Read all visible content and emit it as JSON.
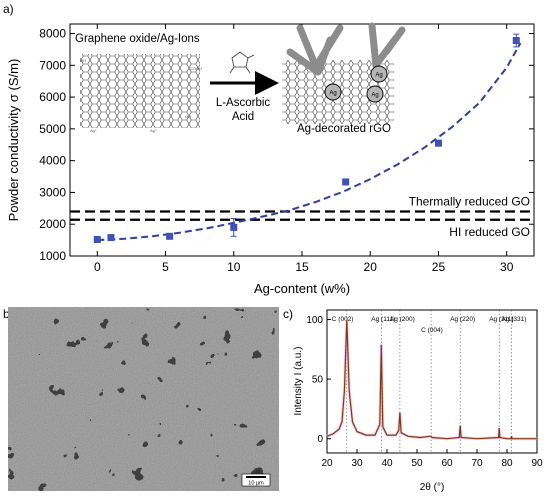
{
  "panels": {
    "a": "a)",
    "b": "b)",
    "c": "c)"
  },
  "chart_data": [
    {
      "type": "scatter",
      "panel": "a",
      "xlabel": "Ag-content (w%)",
      "ylabel": "Powder conductivity σ (S/m)",
      "xlim": [
        -2,
        32
      ],
      "ylim": [
        1000,
        8300
      ],
      "x_ticks": [
        0,
        5,
        10,
        15,
        20,
        25,
        30
      ],
      "y_ticks": [
        1000,
        2000,
        3000,
        4000,
        5000,
        6000,
        7000,
        8000
      ],
      "series": [
        {
          "x": [
            0,
            1,
            5.3,
            10,
            18.2,
            25,
            30.7
          ],
          "y": [
            1520,
            1580,
            1620,
            1900,
            3330,
            4550,
            7780
          ],
          "err": [
            0,
            0,
            0,
            280,
            0,
            0,
            200
          ],
          "color": "#3f51b5"
        }
      ],
      "fit": {
        "x": [
          0,
          2,
          4,
          6,
          8,
          10,
          12,
          14,
          16,
          18,
          20,
          22,
          24,
          26,
          28,
          30,
          31
        ],
        "y": [
          1500,
          1540,
          1620,
          1730,
          1870,
          2040,
          2230,
          2430,
          2700,
          3020,
          3420,
          3880,
          4420,
          5060,
          5820,
          6930,
          7700
        ],
        "color": "#2e3f9e",
        "style": "dashed"
      },
      "reference_lines": [
        {
          "label": "Thermally reduced GO",
          "y": 2400
        },
        {
          "label": "HI reduced GO",
          "y": 2140
        }
      ],
      "inset": {
        "left_label": "Graphene oxide/Ag-Ions",
        "arrow_label_1": "L-Ascorbic",
        "arrow_label_2": "Acid",
        "right_label": "Ag-decorated rGO",
        "particle_label": "Ag"
      },
      "grid": false,
      "legend": "none"
    },
    {
      "type": "line",
      "panel": "c",
      "xlabel": "2θ (°)",
      "ylabel": "Intensity I (a.u.)",
      "xlim": [
        20,
        90
      ],
      "ylim": [
        -12,
        108
      ],
      "x_ticks": [
        20,
        30,
        40,
        50,
        60,
        70,
        80,
        90
      ],
      "y_ticks": [
        0,
        50,
        100
      ],
      "series": [
        {
          "x": [
            20,
            22,
            24,
            25,
            25.8,
            26.6,
            27.4,
            28.5,
            30,
            33,
            36,
            37.6,
            38.1,
            38.6,
            40,
            43,
            43.9,
            44.3,
            44.7,
            47,
            51,
            54.4,
            54.7,
            55,
            60,
            64.1,
            64.4,
            64.7,
            70,
            77.2,
            77.4,
            77.6,
            80,
            81.3,
            81.5,
            81.7,
            90
          ],
          "y": [
            2,
            4,
            8,
            14,
            40,
            100,
            40,
            14,
            6,
            3,
            3,
            12,
            79,
            10,
            3,
            3,
            7,
            22,
            5,
            2,
            1,
            2,
            2,
            1,
            0,
            1,
            11,
            1,
            0,
            1,
            9,
            1,
            0,
            0,
            2,
            0,
            0
          ],
          "color": "#7a3b16"
        }
      ],
      "peaks": [
        {
          "label": "C (002)",
          "x": 26.6
        },
        {
          "label": "Ag (111)",
          "x": 38.1
        },
        {
          "label": "Ag (200)",
          "x": 44.3
        },
        {
          "label": "C (004)",
          "x": 54.7
        },
        {
          "label": "Ag (220)",
          "x": 64.4
        },
        {
          "label": "Ag (311)",
          "x": 77.4
        },
        {
          "label": "Ag (331)",
          "x": 81.5
        }
      ],
      "grid": false,
      "legend": "none"
    }
  ],
  "sem": {
    "scale_bar": "10 µm"
  }
}
